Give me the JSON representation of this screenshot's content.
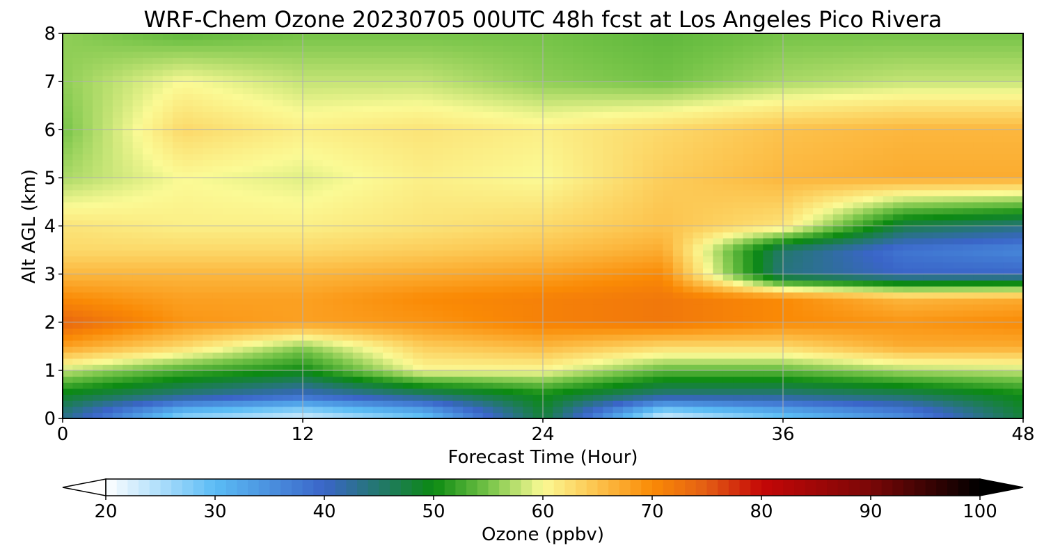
{
  "chart_data": {
    "type": "heatmap",
    "title": "WRF-Chem Ozone  20230705 00UTC 48h fcst at Los Angeles Pico Rivera",
    "xlabel": "Forecast Time (Hour)",
    "ylabel": "Alt AGL (km)",
    "xlim": [
      0,
      48
    ],
    "ylim": [
      0,
      8
    ],
    "xticks": [
      0,
      12,
      24,
      36,
      48
    ],
    "yticks": [
      0,
      1,
      2,
      3,
      4,
      5,
      6,
      7,
      8
    ],
    "grid": true,
    "x": [
      0,
      6,
      12,
      18,
      24,
      30,
      36,
      42,
      48
    ],
    "y": [
      0.1,
      0.5,
      1.0,
      1.5,
      2.0,
      2.5,
      3.0,
      3.5,
      4.0,
      5.0,
      6.0,
      7.0,
      8.0
    ],
    "z": [
      [
        44,
        28,
        24,
        30,
        48,
        24,
        30,
        36,
        48
      ],
      [
        49,
        44,
        40,
        45,
        50,
        44,
        44,
        46,
        50
      ],
      [
        58,
        53,
        50,
        60,
        60,
        54,
        54,
        57,
        58
      ],
      [
        68,
        63,
        56,
        64,
        66,
        63,
        63,
        67,
        67
      ],
      [
        74,
        69,
        68,
        69,
        71,
        72,
        70,
        69,
        70
      ],
      [
        70,
        68,
        68,
        70,
        71,
        72,
        70,
        66,
        67
      ],
      [
        66,
        66,
        66,
        67,
        68,
        70,
        44,
        40,
        40
      ],
      [
        63,
        63,
        63,
        64,
        65,
        67,
        45,
        38,
        36
      ],
      [
        62,
        61,
        61,
        62,
        63,
        65,
        62,
        47,
        44
      ],
      [
        57,
        60,
        59,
        61,
        60,
        64,
        66,
        67,
        67
      ],
      [
        55,
        63,
        61,
        62,
        61,
        63,
        65,
        66,
        66
      ],
      [
        56,
        60,
        58,
        58,
        56,
        55,
        57,
        58,
        58
      ],
      [
        56,
        54,
        55,
        55,
        55,
        54,
        55,
        55,
        55
      ]
    ],
    "colorbar": {
      "label": "Ozone  (ppbv)",
      "min": 20,
      "max": 100,
      "ticks": [
        20,
        30,
        40,
        50,
        60,
        70,
        80,
        90,
        100
      ],
      "extend": "both",
      "stops": [
        {
          "v": 20,
          "c": "#ffffff"
        },
        {
          "v": 30,
          "c": "#5bbcf5"
        },
        {
          "v": 40,
          "c": "#3a65c8"
        },
        {
          "v": 50,
          "c": "#0c8a12"
        },
        {
          "v": 55,
          "c": "#74c347"
        },
        {
          "v": 60,
          "c": "#fbfa95"
        },
        {
          "v": 65,
          "c": "#fcc24c"
        },
        {
          "v": 70,
          "c": "#fa8a05"
        },
        {
          "v": 75,
          "c": "#e35d14"
        },
        {
          "v": 80,
          "c": "#c50707"
        },
        {
          "v": 90,
          "c": "#7a0707"
        },
        {
          "v": 100,
          "c": "#000000"
        }
      ]
    }
  }
}
